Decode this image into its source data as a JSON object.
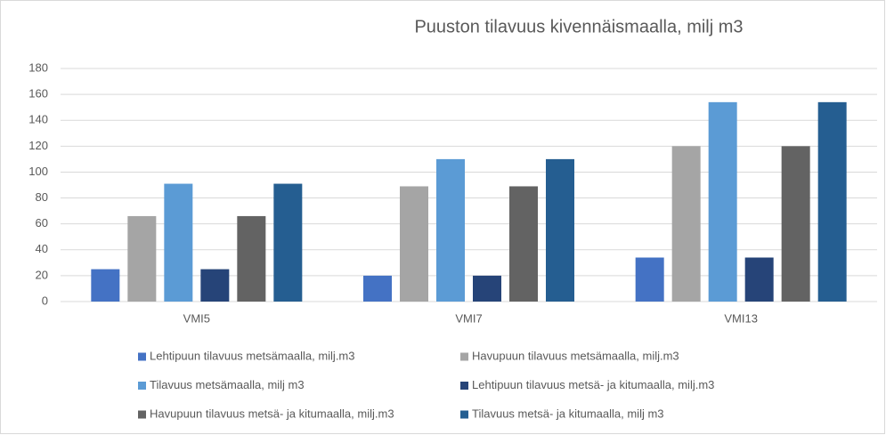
{
  "chart_data": {
    "type": "bar",
    "title": "Puuston tilavuus kivennäismaalla, milj m3",
    "categories": [
      "VMI5",
      "VMI7",
      "VMI13"
    ],
    "series": [
      {
        "name": "Lehtipuun tilavuus metsämaalla, milj.m3",
        "color": "#4472c4",
        "values": [
          25,
          20,
          34
        ]
      },
      {
        "name": "Havupuun tilavuus metsämaalla, milj.m3",
        "color": "#a5a5a5",
        "values": [
          66,
          89,
          120
        ]
      },
      {
        "name": "Tilavuus metsämaalla, milj m3",
        "color": "#5b9bd5",
        "values": [
          91,
          110,
          154
        ]
      },
      {
        "name": "Lehtipuun tilavuus metsä- ja kitumaalla, milj.m3",
        "color": "#264478",
        "values": [
          25,
          20,
          34
        ]
      },
      {
        "name": "Havupuun tilavuus metsä- ja kitumaalla, milj.m3",
        "color": "#636363",
        "values": [
          66,
          89,
          120
        ]
      },
      {
        "name": "Tilavuus metsä- ja kitumaalla, milj m3",
        "color": "#255e91",
        "values": [
          91,
          110,
          154
        ]
      }
    ],
    "ylim": [
      0,
      180
    ],
    "yticks": [
      0,
      20,
      40,
      60,
      80,
      100,
      120,
      140,
      160,
      180
    ],
    "grid": true,
    "legend": "bottom"
  }
}
